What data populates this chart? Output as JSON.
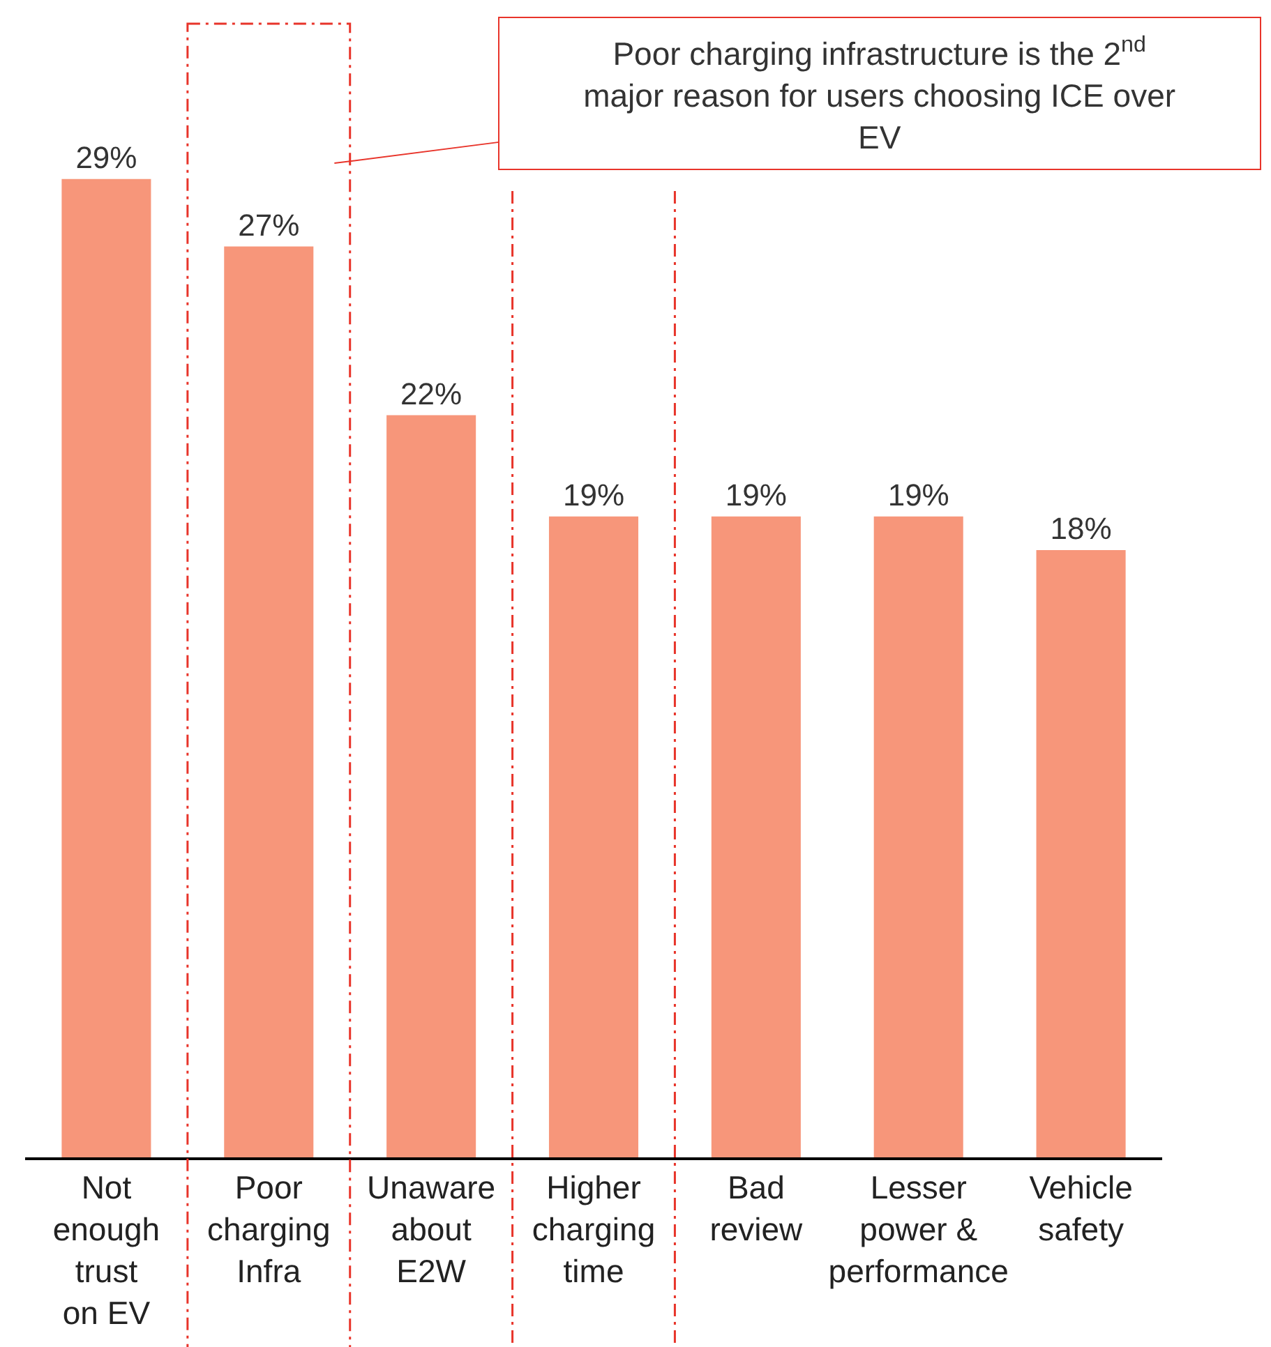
{
  "chart_data": {
    "type": "bar",
    "categories": [
      "Not enough trust on EV",
      "Poor charging Infra",
      "Unaware about E2W",
      "Higher charging time",
      "Bad review",
      "Lesser power & performance",
      "Vehicle safety"
    ],
    "values": [
      29,
      27,
      22,
      19,
      19,
      19,
      18
    ],
    "value_labels": [
      "29%",
      "27%",
      "22%",
      "19%",
      "19%",
      "19%",
      "18%"
    ],
    "color": "#f7967a",
    "annotations": [
      "Poor charging infrastructure is the 2$^{nd}$\nmajor reason for users choosing ICE over\nEV"
    ]
  }
}
